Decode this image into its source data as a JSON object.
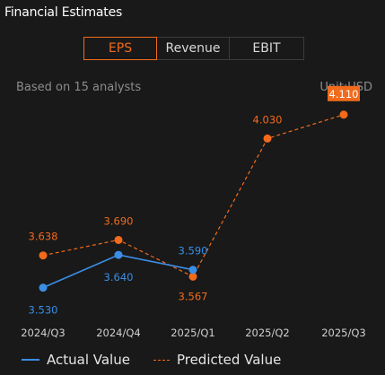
{
  "header": {
    "title": "Financial Estimates"
  },
  "tabs": [
    {
      "label": "EPS",
      "active": true
    },
    {
      "label": "Revenue",
      "active": false
    },
    {
      "label": "EBIT",
      "active": false
    }
  ],
  "info": {
    "analysts": "Based on 15 analysts",
    "unit": "Unit:USD"
  },
  "colors": {
    "actual": "#3a8ee6",
    "predicted": "#f26a1b",
    "background": "#191919"
  },
  "legend": {
    "actual_label": "Actual Value",
    "predicted_label": "Predicted Value"
  },
  "chart_data": {
    "type": "line",
    "categories": [
      "2024/Q3",
      "2024/Q4",
      "2025/Q1",
      "2025/Q2",
      "2025/Q3"
    ],
    "series": [
      {
        "name": "Actual Value",
        "values": [
          3.53,
          3.64,
          3.59,
          null,
          null
        ],
        "labels": [
          "3.530",
          "3.640",
          "3.590",
          "",
          ""
        ]
      },
      {
        "name": "Predicted Value",
        "values": [
          3.638,
          3.69,
          3.567,
          4.03,
          4.11
        ],
        "labels": [
          "3.638",
          "3.690",
          "3.567",
          "4.030",
          "4.110"
        ]
      }
    ],
    "highlight_label": "4.110",
    "ylim": [
      3.4,
      4.2
    ]
  }
}
